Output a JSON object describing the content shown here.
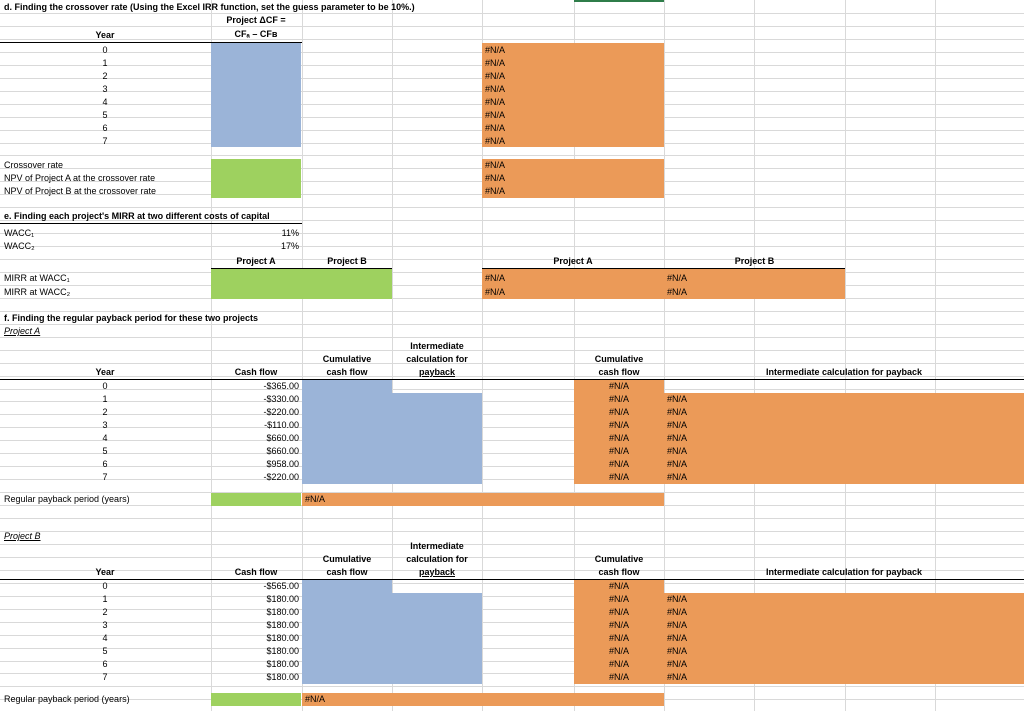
{
  "colors": {
    "blue": "#9bb4d8",
    "green": "#9ed15f",
    "orange": "#eb9a58",
    "grid": "#d9d9d9"
  },
  "na": "#N/A",
  "d": {
    "title": "d. Finding the crossover rate (Using the Excel IRR function, set the guess parameter to be 10%.)",
    "head1": "Project ΔCF =",
    "head2": "CFₐ – CFʙ",
    "year_label": "Year",
    "years": [
      "0",
      "1",
      "2",
      "3",
      "4",
      "5",
      "6",
      "7"
    ],
    "crossover_label": "Crossover rate",
    "npv_a_label": "NPV of Project A at the crossover rate",
    "npv_b_label": "NPV of Project B at the crossover rate"
  },
  "e": {
    "title": "e. Finding each project's MIRR at two different costs of capital",
    "wacc1_label": "WACC₁",
    "wacc2_label": "WACC₂",
    "wacc1_value": "11%",
    "wacc2_value": "17%",
    "proj_a": "Project A",
    "proj_b": "Project B",
    "mirr1_label": "MIRR at WACC₁",
    "mirr2_label": "MIRR at WACC₂"
  },
  "f": {
    "title": "f. Finding the regular payback period for these two projects",
    "project_a": "Project A",
    "project_b": "Project B",
    "year_label": "Year",
    "cash_flow": "Cash flow",
    "cum1": "Cumulative",
    "cum2": "cash flow",
    "inter1": "Intermediate",
    "inter2": "calculation for",
    "inter3": "payback",
    "inter_full": "Intermediate calculation for payback",
    "years": [
      "0",
      "1",
      "2",
      "3",
      "4",
      "5",
      "6",
      "7"
    ],
    "cf_a": [
      "-$365.00",
      "-$330.00",
      "-$220.00",
      "-$110.00",
      "$660.00",
      "$660.00",
      "$958.00",
      "-$220.00"
    ],
    "cf_b": [
      "-$565.00",
      "$180.00",
      "$180.00",
      "$180.00",
      "$180.00",
      "$180.00",
      "$180.00",
      "$180.00"
    ],
    "payback_label": "Regular payback period (years)"
  }
}
